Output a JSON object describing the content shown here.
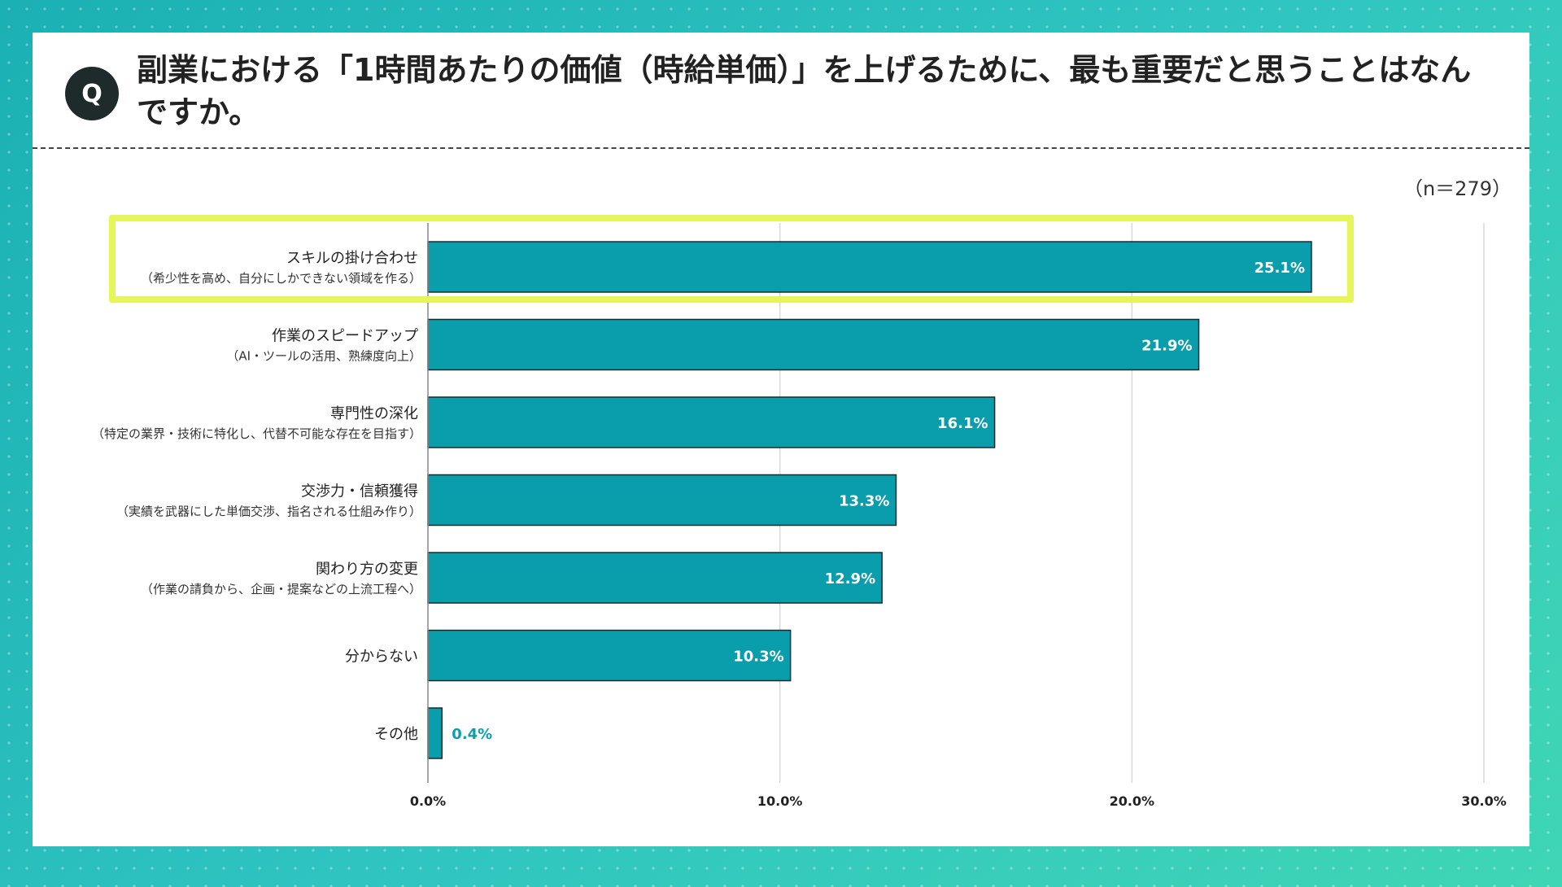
{
  "question": {
    "badge": "Q",
    "text": "副業における「1時間あたりの価値（時給単価）」を上げるために、最も重要だと思うことはなんですか。"
  },
  "sample_size": "（n＝279）",
  "colors": {
    "bar": "#0a9dab",
    "highlight": "#e5f55a",
    "background": "#2fc4c0"
  },
  "chart_data": {
    "type": "bar",
    "orientation": "horizontal",
    "categories": [
      "スキルの掛け合わせ",
      "作業のスピードアップ",
      "専門性の深化",
      "交渉力・信頼獲得",
      "関わり方の変更",
      "分からない",
      "その他"
    ],
    "category_notes": [
      "（希少性を高め、自分にしかできない領域を作る）",
      "（AI・ツールの活用、熟練度向上）",
      "（特定の業界・技術に特化し、代替不可能な存在を目指す）",
      "（実績を武器にした単価交渉、指名される仕組み作り）",
      "（作業の請負から、企画・提案などの上流工程へ）",
      "",
      ""
    ],
    "values": [
      25.1,
      21.9,
      16.1,
      13.3,
      12.9,
      10.3,
      0.4
    ],
    "value_labels": [
      "25.1%",
      "21.9%",
      "16.1%",
      "13.3%",
      "12.9%",
      "10.3%",
      "0.4%"
    ],
    "xlim": [
      0,
      30
    ],
    "xticks": [
      0,
      10,
      20,
      30
    ],
    "xtick_labels": [
      "0.0%",
      "10.0%",
      "20.0%",
      "30.0%"
    ],
    "grid": true,
    "highlighted_category": "スキルの掛け合わせ"
  }
}
